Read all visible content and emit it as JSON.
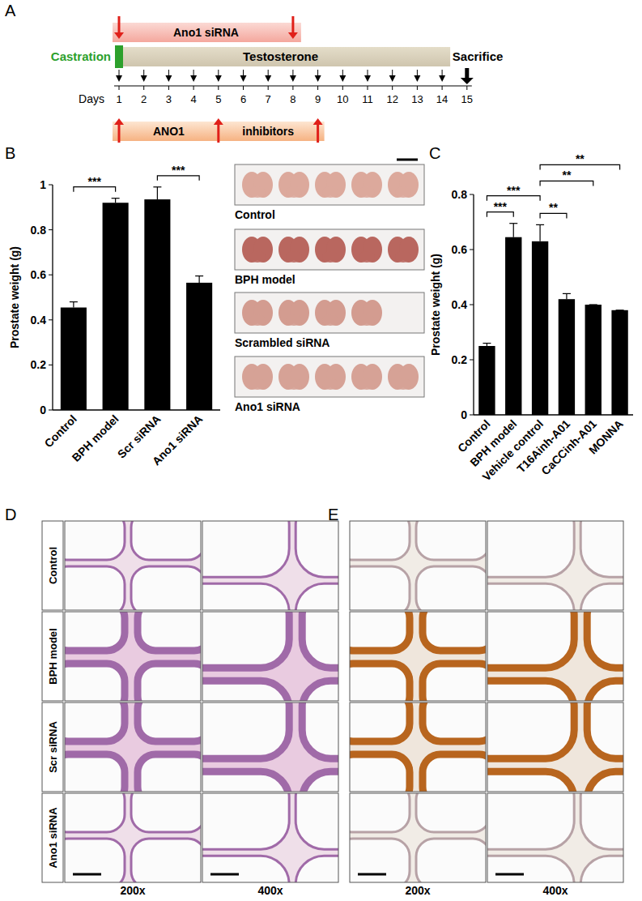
{
  "figure": {
    "panel_labels": [
      "A",
      "B",
      "C",
      "D",
      "E"
    ]
  },
  "timeline": {
    "days_label": "Days",
    "days": [
      1,
      2,
      3,
      4,
      5,
      6,
      7,
      8,
      9,
      10,
      11,
      12,
      13,
      14,
      15
    ],
    "sirna_label": "Ano1 siRNA",
    "sirna_days": [
      1,
      8
    ],
    "castration_label": "Castration",
    "castration_day": 1,
    "testosterone_label": "Testosterone",
    "testosterone_days": [
      1,
      2,
      3,
      4,
      5,
      6,
      7,
      8,
      9,
      10,
      11,
      12,
      13,
      14
    ],
    "sacrifice_label": "Sacrifice",
    "sacrifice_day": 15,
    "inhibitor_label": [
      "ANO1",
      "inhibitors"
    ],
    "inhibitor_days": [
      1,
      5,
      9
    ]
  },
  "chart_data": [
    {
      "type": "bar",
      "ylabel": "Prostate weight (g)",
      "categories": [
        "Control",
        "BPH model",
        "Scr siRNA",
        "Ano1 siRNA"
      ],
      "values": [
        0.455,
        0.92,
        0.935,
        0.565
      ],
      "errors": [
        0.025,
        0.02,
        0.055,
        0.03
      ],
      "color": "#000000",
      "ylim": [
        0,
        1
      ],
      "yticks": [
        0,
        0.2,
        0.4,
        0.6,
        0.8,
        1
      ],
      "comparisons": [
        {
          "pair": [
            "Control",
            "BPH model"
          ],
          "label": "***"
        },
        {
          "pair": [
            "Scr siRNA",
            "Ano1 siRNA"
          ],
          "label": "***"
        }
      ]
    },
    {
      "type": "bar",
      "ylabel": "Prostate weight (g)",
      "categories": [
        "Control",
        "BPH model",
        "Vehicle control",
        "T16Ainh-A01",
        "CaCCinh-A01",
        "MONNA"
      ],
      "values": [
        0.25,
        0.645,
        0.63,
        0.42,
        0.4,
        0.38
      ],
      "errors": [
        0.01,
        0.05,
        0.06,
        0.02,
        0,
        0
      ],
      "color": "#000000",
      "ylim": [
        0,
        0.8
      ],
      "yticks": [
        0,
        0.2,
        0.4,
        0.6,
        0.8
      ],
      "comparisons": [
        {
          "pair": [
            "Control",
            "BPH model"
          ],
          "label": "***"
        },
        {
          "pair": [
            "Control",
            "Vehicle control"
          ],
          "label": "***"
        },
        {
          "pair": [
            "Vehicle control",
            "T16Ainh-A01"
          ],
          "label": "**"
        },
        {
          "pair": [
            "Vehicle control",
            "CaCCinh-A01"
          ],
          "label": "**"
        },
        {
          "pair": [
            "Vehicle control",
            "MONNA"
          ],
          "label": "**"
        }
      ]
    }
  ],
  "photos": {
    "rows": [
      {
        "label": "Control",
        "count": 5
      },
      {
        "label": "BPH model",
        "count": 5
      },
      {
        "label": "Scrambled siRNA",
        "count": 4
      },
      {
        "label": "Ano1 siRNA",
        "count": 5
      }
    ]
  },
  "histology": {
    "D": {
      "row_labels": [
        "Control",
        "BPH model",
        "Scr siRNA",
        "Ano1 siRNA"
      ],
      "column_labels": [
        "200x",
        "400x"
      ]
    },
    "E": {
      "column_labels": [
        "200x",
        "400x"
      ]
    }
  }
}
